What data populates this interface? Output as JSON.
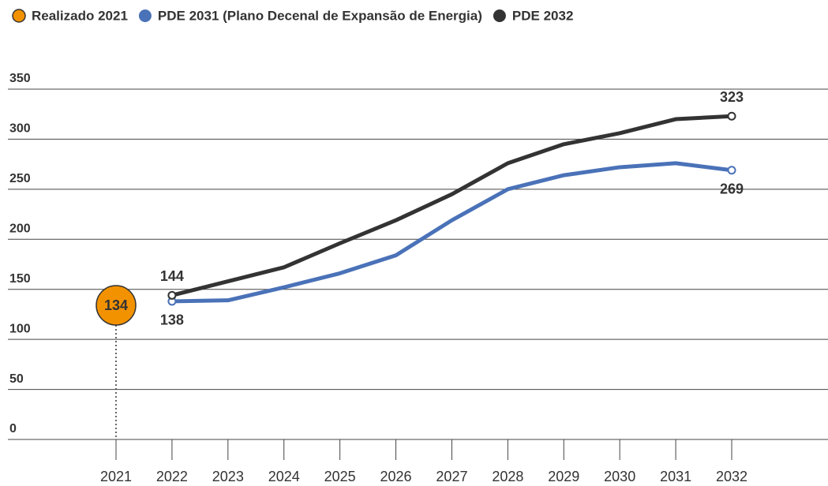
{
  "chart_data": {
    "type": "line",
    "categories": [
      "2021",
      "2022",
      "2023",
      "2024",
      "2025",
      "2026",
      "2027",
      "2028",
      "2029",
      "2030",
      "2031",
      "2032"
    ],
    "series": [
      {
        "name": "Realizado 2021",
        "color": "#f39200",
        "values": [
          134,
          null,
          null,
          null,
          null,
          null,
          null,
          null,
          null,
          null,
          null,
          null
        ]
      },
      {
        "name": "PDE 2031 (Plano Decenal de Expansão de Energia)",
        "color": "#4a72b8",
        "values": [
          null,
          138,
          139,
          152,
          166,
          184,
          219,
          250,
          264,
          272,
          276,
          269
        ]
      },
      {
        "name": "PDE 2032",
        "color": "#333333",
        "values": [
          null,
          144,
          158,
          172,
          196,
          219,
          245,
          276,
          295,
          306,
          320,
          323
        ]
      }
    ],
    "ylim": [
      0,
      350
    ],
    "yticks": [
      0,
      50,
      100,
      150,
      200,
      250,
      300,
      350
    ],
    "grid": true
  }
}
